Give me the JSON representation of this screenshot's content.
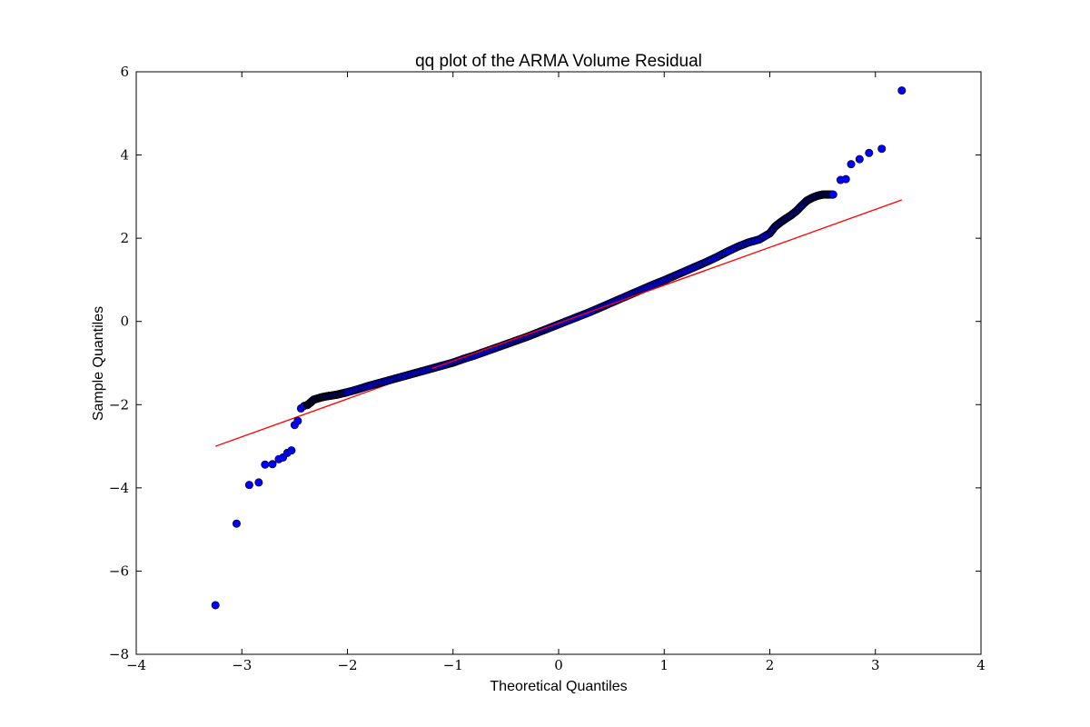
{
  "chart_data": {
    "type": "scatter",
    "title": "qq plot of the ARMA Volume Residual",
    "xlabel": "Theoretical Quantiles",
    "ylabel": "Sample Quantiles",
    "xlim": [
      -4,
      4
    ],
    "ylim": [
      -8,
      6
    ],
    "xticks": [
      -4,
      -3,
      -2,
      -1,
      0,
      1,
      2,
      3,
      4
    ],
    "yticks": [
      -8,
      -6,
      -4,
      -2,
      0,
      2,
      4,
      6
    ],
    "xtick_labels": [
      "−4",
      "−3",
      "−2",
      "−1",
      "0",
      "1",
      "2",
      "3",
      "4"
    ],
    "ytick_labels": [
      "−8",
      "−6",
      "−4",
      "−2",
      "0",
      "2",
      "4",
      "6"
    ],
    "grid": false,
    "legend": "none",
    "marker_color": "#0000ff",
    "marker_edge_color": "#000000",
    "line_color": "#ff0000",
    "reference_line": {
      "x": [
        -3.25,
        3.25
      ],
      "y": [
        -3.0,
        2.92
      ]
    },
    "series": [
      {
        "type": "scatter",
        "points": [
          [
            -3.25,
            -6.82
          ],
          [
            -3.05,
            -4.86
          ],
          [
            -2.93,
            -3.93
          ],
          [
            -2.84,
            -3.87
          ],
          [
            -2.78,
            -3.44
          ],
          [
            -2.71,
            -3.43
          ],
          [
            -2.65,
            -3.31
          ],
          [
            -2.61,
            -3.27
          ],
          [
            -2.57,
            -3.16
          ],
          [
            -2.53,
            -3.1
          ],
          [
            -2.5,
            -2.49
          ],
          [
            -2.47,
            -2.39
          ],
          [
            -2.44,
            -2.09
          ],
          [
            -2.41,
            -2.03
          ],
          [
            -2.38,
            -2.01
          ],
          [
            -2.35,
            -1.95
          ],
          [
            -2.32,
            -1.88
          ],
          [
            -2.28,
            -1.85
          ],
          [
            -2.24,
            -1.82
          ],
          [
            -2.2,
            -1.8
          ],
          [
            -2.15,
            -1.78
          ],
          [
            -2.1,
            -1.76
          ],
          [
            -2.05,
            -1.73
          ],
          [
            -2.0,
            -1.7
          ],
          [
            -1.9,
            -1.63
          ],
          [
            -1.8,
            -1.55
          ],
          [
            -1.7,
            -1.48
          ],
          [
            -1.6,
            -1.41
          ],
          [
            -1.5,
            -1.34
          ],
          [
            -1.4,
            -1.27
          ],
          [
            -1.3,
            -1.2
          ],
          [
            -1.2,
            -1.13
          ],
          [
            -1.1,
            -1.06
          ],
          [
            -1.0,
            -0.99
          ],
          [
            -0.9,
            -0.9
          ],
          [
            -0.8,
            -0.82
          ],
          [
            -0.7,
            -0.73
          ],
          [
            -0.6,
            -0.64
          ],
          [
            -0.5,
            -0.55
          ],
          [
            -0.4,
            -0.46
          ],
          [
            -0.3,
            -0.37
          ],
          [
            -0.2,
            -0.27
          ],
          [
            -0.1,
            -0.17
          ],
          [
            0.0,
            -0.07
          ],
          [
            0.1,
            0.03
          ],
          [
            0.2,
            0.13
          ],
          [
            0.3,
            0.23
          ],
          [
            0.4,
            0.34
          ],
          [
            0.5,
            0.45
          ],
          [
            0.6,
            0.56
          ],
          [
            0.7,
            0.67
          ],
          [
            0.8,
            0.78
          ],
          [
            0.9,
            0.89
          ],
          [
            1.0,
            0.99
          ],
          [
            1.1,
            1.1
          ],
          [
            1.2,
            1.21
          ],
          [
            1.3,
            1.32
          ],
          [
            1.4,
            1.43
          ],
          [
            1.5,
            1.55
          ],
          [
            1.6,
            1.68
          ],
          [
            1.7,
            1.8
          ],
          [
            1.8,
            1.9
          ],
          [
            1.9,
            1.97
          ],
          [
            2.0,
            2.12
          ],
          [
            2.05,
            2.28
          ],
          [
            2.1,
            2.38
          ],
          [
            2.15,
            2.47
          ],
          [
            2.2,
            2.55
          ],
          [
            2.25,
            2.65
          ],
          [
            2.3,
            2.78
          ],
          [
            2.35,
            2.9
          ],
          [
            2.4,
            2.97
          ],
          [
            2.45,
            3.02
          ],
          [
            2.5,
            3.05
          ],
          [
            2.55,
            3.05
          ],
          [
            2.6,
            3.05
          ],
          [
            2.67,
            3.4
          ],
          [
            2.72,
            3.42
          ],
          [
            2.77,
            3.78
          ],
          [
            2.85,
            3.9
          ],
          [
            2.94,
            4.05
          ],
          [
            3.06,
            4.15
          ],
          [
            3.25,
            5.55
          ]
        ]
      }
    ]
  }
}
